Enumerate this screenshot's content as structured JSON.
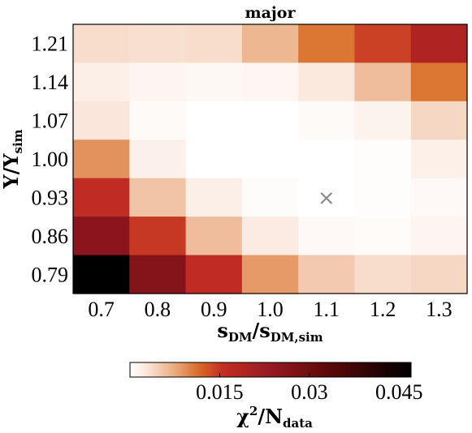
{
  "chart_data": {
    "type": "heatmap",
    "title": "major",
    "xlabel": {
      "main": "s",
      "sub": "DM",
      "sep": "/",
      "main2": "s",
      "sub2": "DM,sim"
    },
    "ylabel": {
      "main": "Υ",
      "sep": "/",
      "main2": "Υ",
      "sub2": "sim"
    },
    "x_categories": [
      "0.7",
      "0.8",
      "0.9",
      "1.0",
      "1.1",
      "1.2",
      "1.3"
    ],
    "y_categories": [
      "1.21",
      "1.14",
      "1.07",
      "1.00",
      "0.93",
      "0.86",
      "0.79"
    ],
    "values": [
      [
        0.0035,
        0.0033,
        0.0035,
        0.0065,
        0.0108,
        0.0142,
        0.019
      ],
      [
        0.0018,
        0.0011,
        0.0008,
        0.001,
        0.0025,
        0.006,
        0.0108
      ],
      [
        0.0028,
        0.0006,
        0.0,
        0.0,
        0.0006,
        0.0014,
        0.004
      ],
      [
        0.009,
        0.0016,
        0.0,
        0.0,
        0.0,
        0.0002,
        0.0017
      ],
      [
        0.016,
        0.0055,
        0.0018,
        0.0003,
        0.0,
        0.0002,
        0.0007
      ],
      [
        0.0255,
        0.0148,
        0.006,
        0.0022,
        0.0007,
        0.0005,
        0.0011
      ],
      [
        0.047,
        0.0265,
        0.016,
        0.0085,
        0.005,
        0.0035,
        0.004
      ]
    ],
    "marker": {
      "x": "1.1",
      "y": "0.93",
      "symbol": "×"
    },
    "colorbar": {
      "label": {
        "main": "χ",
        "sup": "2",
        "sep": "/",
        "main2": "N",
        "sub2": "data"
      },
      "min": 0.0,
      "max": 0.047,
      "ticks": [
        0.015,
        0.03,
        0.045
      ],
      "tick_labels": [
        "0.015",
        "0.03",
        "0.045"
      ],
      "colormap": "gist_heat_r",
      "orientation": "horizontal",
      "placement": "bottom"
    }
  }
}
